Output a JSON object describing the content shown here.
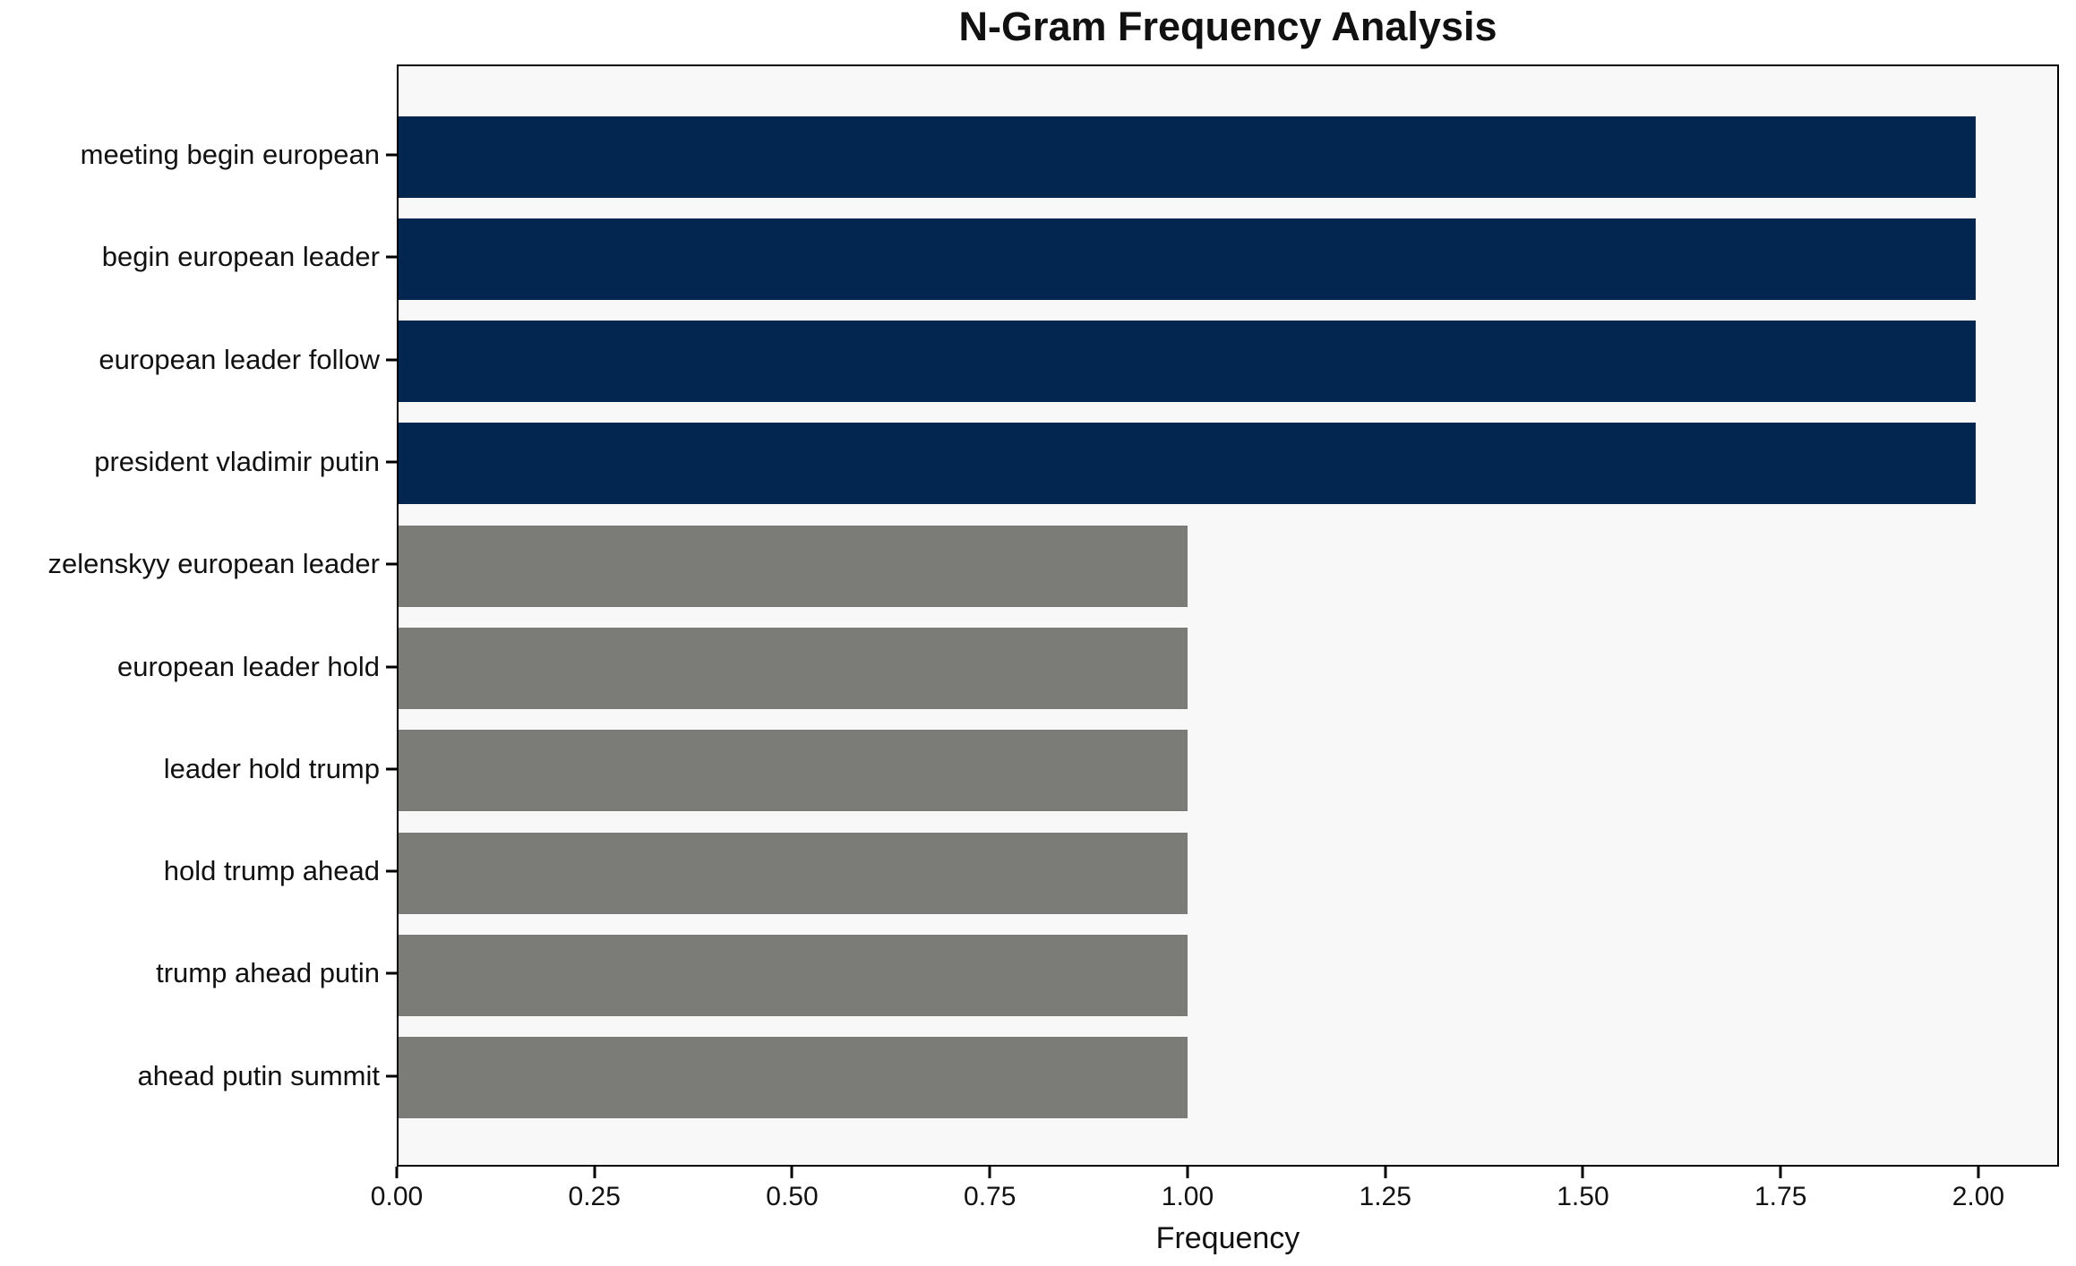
{
  "chart_data": {
    "type": "bar",
    "orientation": "horizontal",
    "title": "N-Gram Frequency Analysis",
    "xlabel": "Frequency",
    "ylabel": "",
    "categories": [
      "meeting begin european",
      "begin european leader",
      "european leader follow",
      "president vladimir putin",
      "zelenskyy european leader",
      "european leader hold",
      "leader hold trump",
      "hold trump ahead",
      "trump ahead putin",
      "ahead putin summit"
    ],
    "values": [
      2,
      2,
      2,
      2,
      1,
      1,
      1,
      1,
      1,
      1
    ],
    "bar_colors": [
      "#02264f",
      "#02264f",
      "#02264f",
      "#02264f",
      "#7b7b78",
      "#7b7b78",
      "#7b7b78",
      "#7b7b78",
      "#7b7b78",
      "#7b7b78"
    ],
    "xlim": [
      0,
      2.102
    ],
    "xticks": [
      0,
      0.25,
      0.5,
      0.75,
      1.0,
      1.25,
      1.5,
      1.75,
      2.0
    ],
    "xtick_labels": [
      "0.00",
      "0.25",
      "0.50",
      "0.75",
      "1.00",
      "1.25",
      "1.50",
      "1.75",
      "2.00"
    ],
    "grid": false,
    "legend_position": "none",
    "plot_background": "#f8f8f8",
    "figure_background": "#ffffff",
    "accent_navy": "#02264f",
    "accent_gray": "#7b7b78"
  }
}
